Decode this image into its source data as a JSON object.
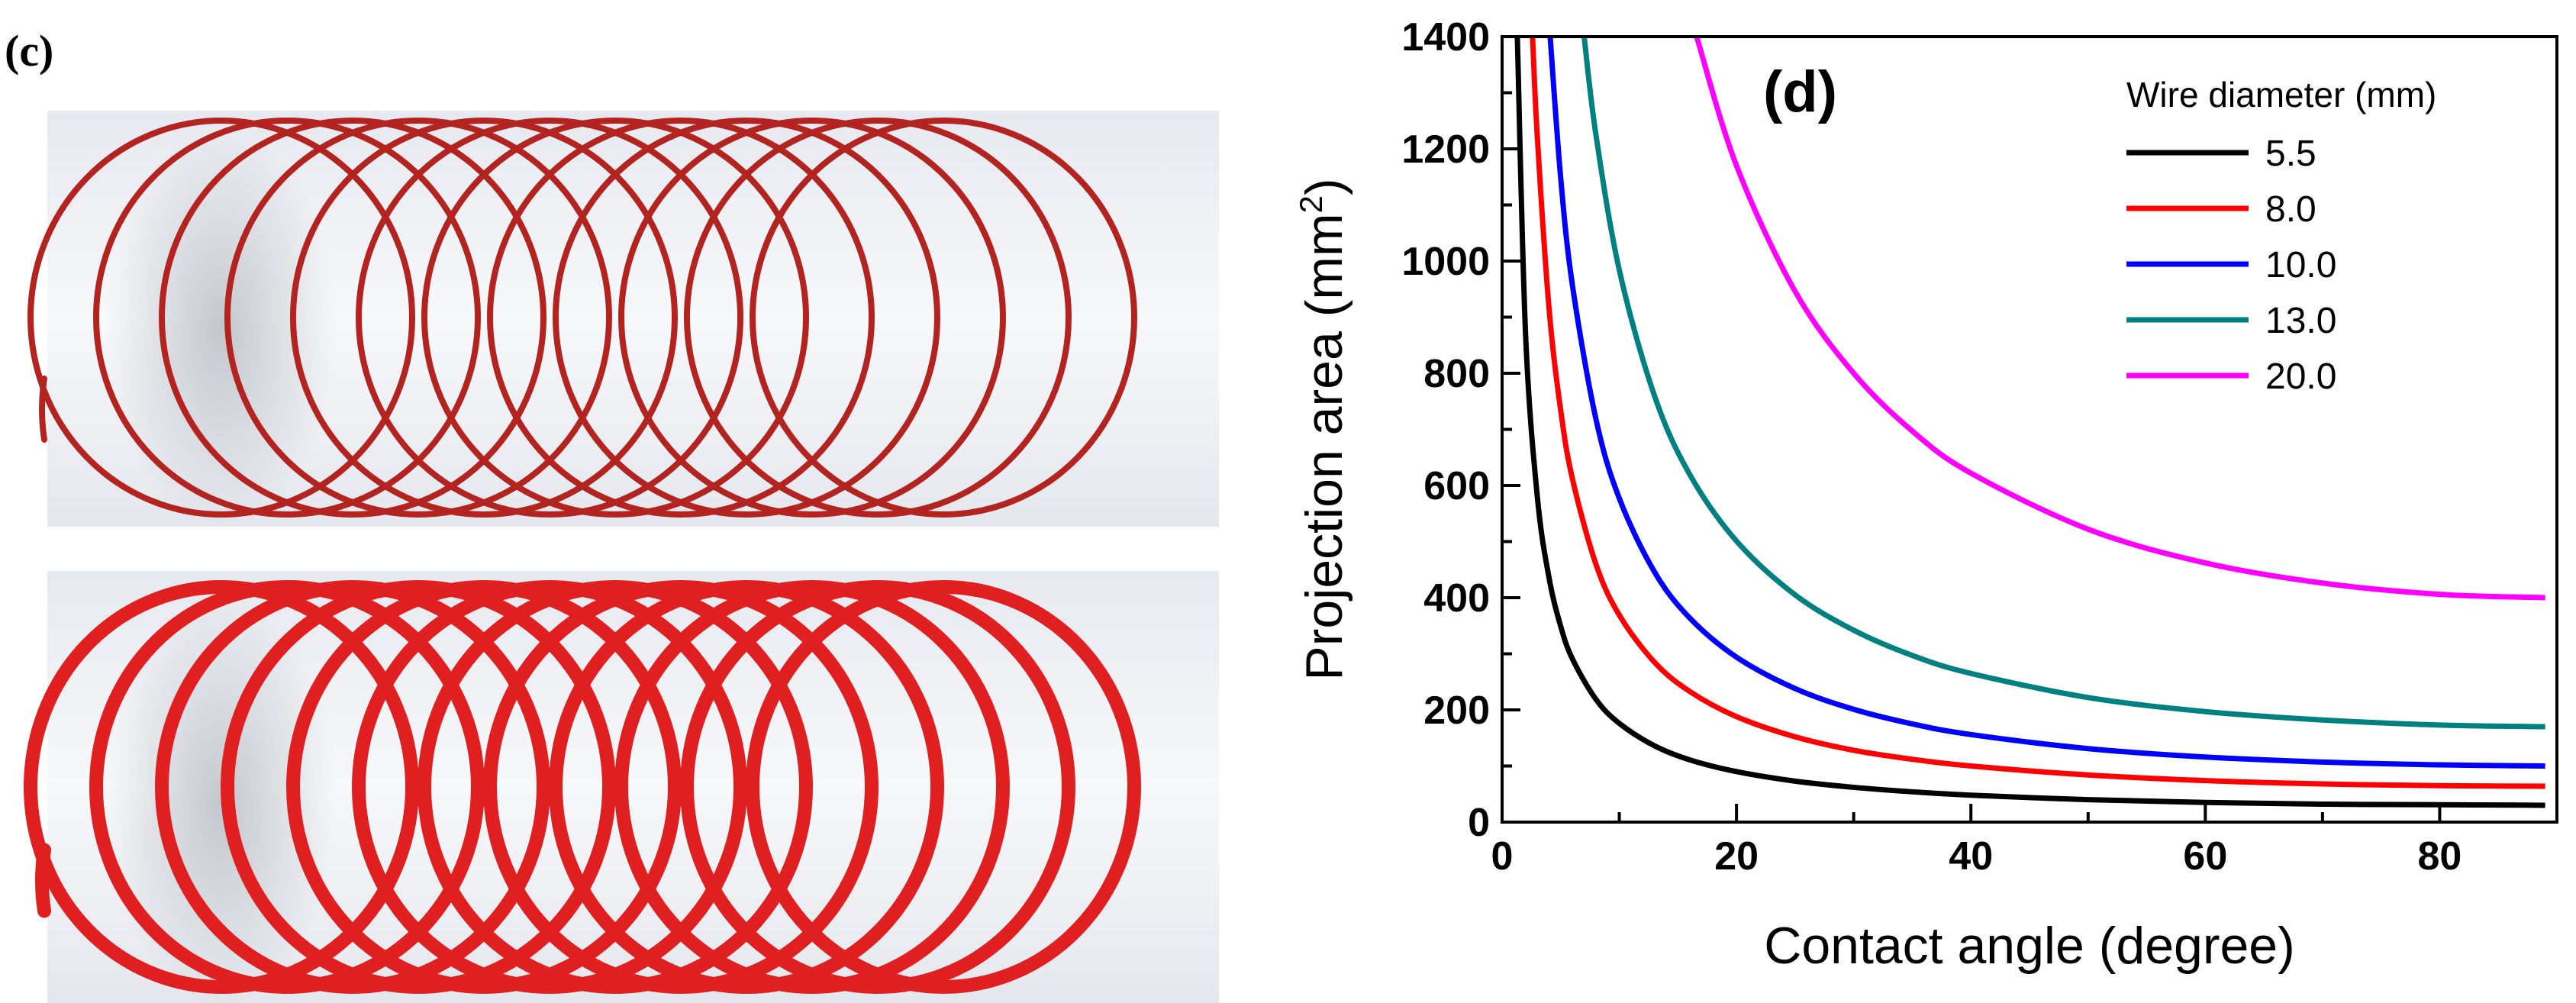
{
  "panel_c": {
    "label": "(c)",
    "coils": [
      {
        "name": "thin-wire-coil",
        "color": "#b3231f",
        "wire": "thin"
      },
      {
        "name": "thick-wire-coil",
        "color": "#e02020",
        "wire": "thick"
      }
    ]
  },
  "chart_data": {
    "type": "line",
    "panel_label": "(d)",
    "title": "",
    "xlabel": "Contact angle (degree)",
    "ylabel_main": "Projection area (mm",
    "ylabel_sup": "2",
    "ylabel_close": ")",
    "xlim": [
      0,
      90
    ],
    "ylim": [
      0,
      1400
    ],
    "xticks": [
      0,
      20,
      40,
      60,
      80
    ],
    "yticks": [
      0,
      200,
      400,
      600,
      800,
      1000,
      1200,
      1400
    ],
    "grid": false,
    "legend_title": "Wire diameter (mm)",
    "legend_position": "top-right",
    "series": [
      {
        "name": "5.5",
        "color": "#000000",
        "x": [
          1.3,
          2,
          3,
          4,
          5,
          6,
          8,
          10,
          13,
          16,
          20,
          25,
          30,
          35,
          40,
          50,
          60,
          70,
          80,
          89
        ],
        "y": [
          1400,
          871,
          581,
          436,
          349,
          291,
          219,
          176,
          136,
          111,
          90,
          73,
          62,
          54,
          48,
          40,
          35,
          32,
          31,
          30
        ]
      },
      {
        "name": "8.0",
        "color": "#ff0000",
        "x": [
          2.6,
          3,
          4,
          5,
          6,
          8,
          10,
          13,
          16,
          20,
          25,
          30,
          35,
          40,
          50,
          60,
          70,
          80,
          89
        ],
        "y": [
          1400,
          1223,
          917,
          734,
          612,
          460,
          369,
          285,
          233,
          188,
          152,
          128,
          112,
          100,
          84,
          74,
          68,
          65,
          64
        ]
      },
      {
        "name": "10.0",
        "color": "#0000ff",
        "x": [
          4.1,
          5,
          6,
          8,
          10,
          13,
          16,
          20,
          25,
          30,
          35,
          40,
          50,
          60,
          70,
          80,
          89
        ],
        "y": [
          1400,
          1148,
          957,
          719,
          577,
          446,
          364,
          294,
          238,
          201,
          175,
          156,
          131,
          116,
          107,
          102,
          100
        ]
      },
      {
        "name": "13.0",
        "color": "#008080",
        "x": [
          7,
          8,
          10,
          13,
          16,
          20,
          25,
          30,
          35,
          40,
          50,
          60,
          70,
          80,
          89
        ],
        "y": [
          1400,
          1226,
          984,
          760,
          620,
          501,
          405,
          342,
          297,
          265,
          222,
          197,
          182,
          173,
          170
        ]
      },
      {
        "name": "20.0",
        "color": "#ff00ff",
        "x": [
          16.6,
          20,
          25,
          30,
          35,
          40,
          50,
          60,
          70,
          80,
          89
        ],
        "y": [
          1400,
          1170,
          946,
          800,
          697,
          622,
          522,
          462,
          426,
          406,
          400
        ]
      }
    ]
  }
}
